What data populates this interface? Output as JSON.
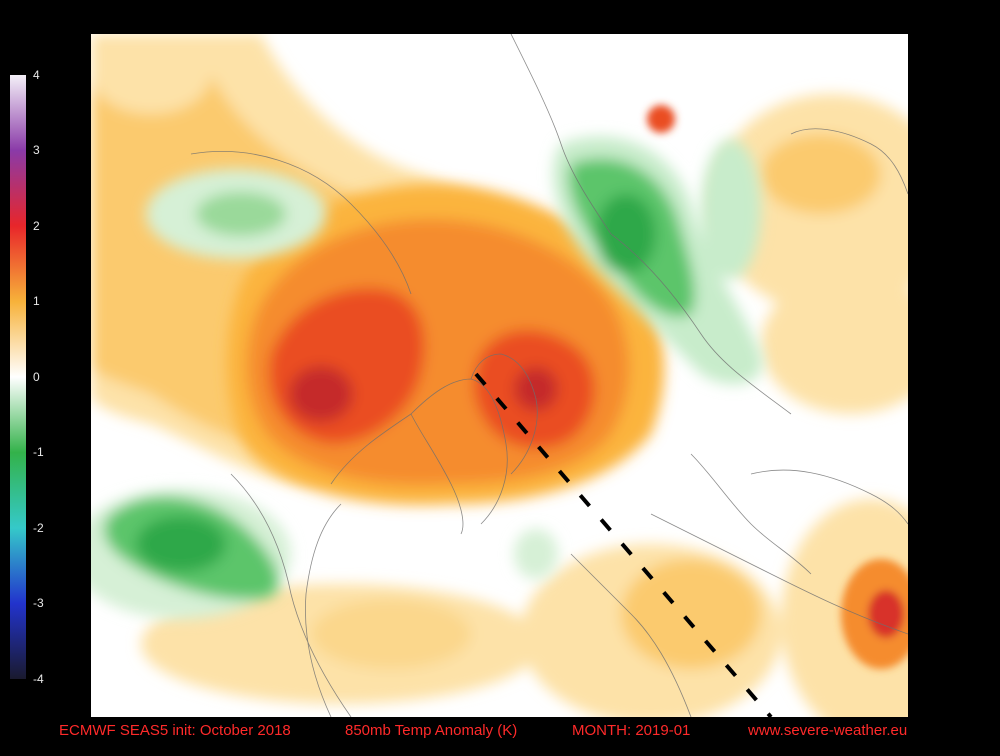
{
  "colorbar": {
    "ticks": [
      "4",
      "3",
      "2",
      "1",
      "0",
      "-1",
      "-2",
      "-3",
      "-4"
    ],
    "colors": {
      "plus4": "#f4f0f8",
      "plus3": "#8a3aa8",
      "plus2": "#e8262a",
      "plus1": "#f7b23a",
      "zero": "#ffffff",
      "minus1": "#33b24a",
      "minus2": "#35c9c9",
      "minus3": "#2233cc",
      "minus4": "#1a1a2e"
    }
  },
  "caption": {
    "model": "ECMWF SEAS5 init: October 2018",
    "field": "850mb Temp Anomaly (K)",
    "month": "MONTH: 2019-01",
    "site": "www.severe-weather.eu"
  }
}
